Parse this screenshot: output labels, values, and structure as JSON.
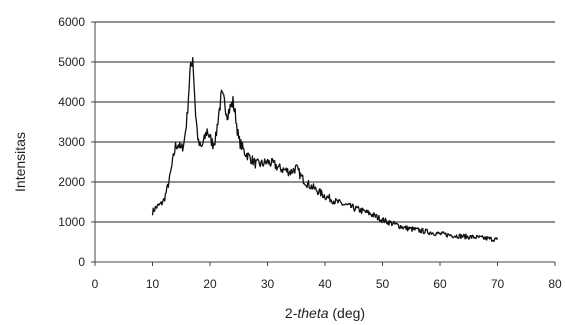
{
  "chart_data": {
    "type": "line",
    "title": "",
    "xlabel_parts": [
      "2-",
      "theta",
      " (deg)"
    ],
    "ylabel": "Intensitas",
    "xlim": [
      0,
      80
    ],
    "ylim": [
      0,
      6000
    ],
    "xticks": [
      "0",
      "10",
      "20",
      "30",
      "40",
      "50",
      "60",
      "70",
      "80"
    ],
    "yticks": [
      "0",
      "1000",
      "2000",
      "3000",
      "4000",
      "5000",
      "6000"
    ],
    "grid": "horizontal",
    "legend": "none",
    "line_color": "#111111",
    "grid_color": "#222222",
    "series": [
      {
        "x": [
          10,
          10.5,
          11,
          11.5,
          12,
          12.5,
          13,
          13.5,
          14,
          14.5,
          15,
          15.5,
          16,
          16.5,
          17,
          17.5,
          18,
          18.5,
          19,
          19.5,
          20,
          20.5,
          21,
          21.5,
          22,
          22.5,
          23,
          23.5,
          24,
          24.5,
          25,
          26,
          27,
          28,
          29,
          30,
          31,
          32,
          33,
          34,
          35,
          36,
          37,
          38,
          39,
          40,
          42,
          44,
          46,
          48,
          50,
          52,
          54,
          56,
          58,
          60,
          62,
          64,
          66,
          68,
          70
        ],
        "y": [
          1250,
          1350,
          1400,
          1450,
          1550,
          1800,
          2100,
          2500,
          2900,
          2950,
          2800,
          3000,
          3600,
          4700,
          5150,
          3700,
          2950,
          2850,
          3050,
          3300,
          3100,
          2950,
          3100,
          3700,
          4150,
          4000,
          3700,
          3850,
          4000,
          3600,
          3050,
          2750,
          2600,
          2450,
          2450,
          2500,
          2450,
          2350,
          2300,
          2250,
          2350,
          2100,
          1950,
          1850,
          1750,
          1650,
          1500,
          1400,
          1300,
          1200,
          1050,
          950,
          850,
          800,
          750,
          700,
          670,
          640,
          620,
          590,
          560
        ]
      }
    ]
  }
}
